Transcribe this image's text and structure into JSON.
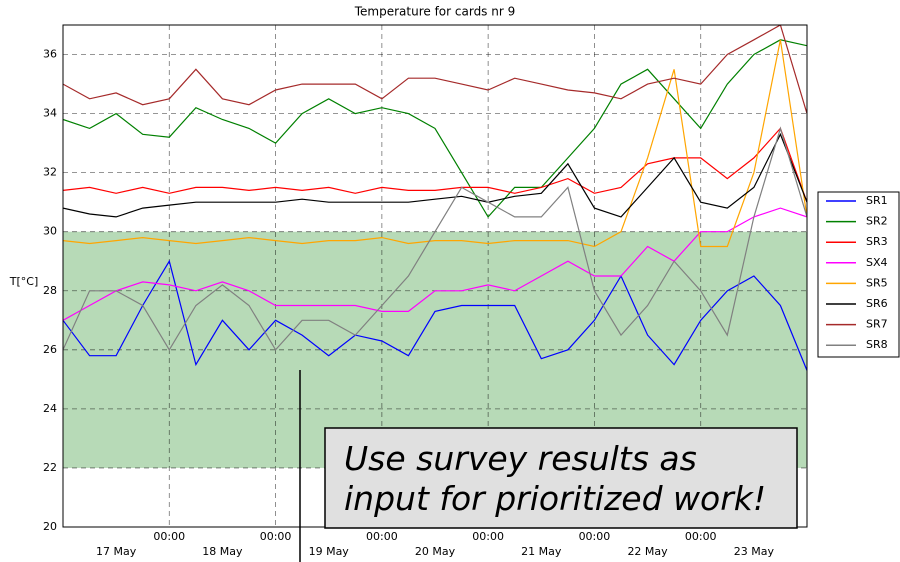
{
  "chart_data": {
    "type": "line",
    "title": "Temperature for cards nr 9",
    "y_label": "T[°C]",
    "x": [
      "17 May 00:00",
      "17 May 06:00",
      "17 May 12:00",
      "17 May 18:00",
      "18 May 00:00",
      "18 May 06:00",
      "18 May 12:00",
      "18 May 18:00",
      "19 May 00:00",
      "19 May 06:00",
      "19 May 12:00",
      "19 May 18:00",
      "20 May 00:00",
      "20 May 06:00",
      "20 May 12:00",
      "20 May 18:00",
      "21 May 00:00",
      "21 May 06:00",
      "21 May 12:00",
      "21 May 18:00",
      "22 May 00:00",
      "22 May 06:00",
      "22 May 12:00",
      "22 May 18:00",
      "23 May 00:00",
      "23 May 06:00",
      "23 May 12:00",
      "23 May 18:00",
      "24 May 00:00"
    ],
    "series": [
      {
        "name": "SR1",
        "color": "#0000ff",
        "values": [
          27,
          25.8,
          25.8,
          27.5,
          29,
          25.5,
          27,
          26,
          27,
          26.5,
          25.8,
          26.5,
          26.3,
          25.8,
          27.3,
          27.5,
          27.5,
          27.5,
          25.7,
          26,
          27,
          28.5,
          26.5,
          25.5,
          27,
          28,
          28.5,
          27.5,
          25.3
        ]
      },
      {
        "name": "SR2",
        "color": "#008000",
        "values": [
          33.8,
          33.5,
          34,
          33.3,
          33.2,
          34.2,
          33.8,
          33.5,
          33,
          34,
          34.5,
          34,
          34.2,
          34,
          33.5,
          32,
          30.5,
          31.5,
          31.5,
          32.5,
          33.5,
          35,
          35.5,
          34.5,
          33.5,
          35,
          36,
          36.5,
          36.3
        ]
      },
      {
        "name": "SR3",
        "color": "#ff0000",
        "values": [
          31.4,
          31.5,
          31.3,
          31.5,
          31.3,
          31.5,
          31.5,
          31.4,
          31.5,
          31.4,
          31.5,
          31.3,
          31.5,
          31.4,
          31.4,
          31.5,
          31.5,
          31.3,
          31.5,
          31.8,
          31.3,
          31.5,
          32.3,
          32.5,
          32.5,
          31.8,
          32.5,
          33.5,
          31
        ]
      },
      {
        "name": "SX4",
        "color": "#ff00ff",
        "values": [
          27,
          27.5,
          28,
          28.3,
          28.2,
          28,
          28.3,
          28,
          27.5,
          27.5,
          27.5,
          27.5,
          27.3,
          27.3,
          28,
          28,
          28.2,
          28,
          28.5,
          29,
          28.5,
          28.5,
          29.5,
          29,
          30,
          30,
          30.5,
          30.8,
          30.5
        ]
      },
      {
        "name": "SR5",
        "color": "#ffa500",
        "values": [
          29.7,
          29.6,
          29.7,
          29.8,
          29.7,
          29.6,
          29.7,
          29.8,
          29.7,
          29.6,
          29.7,
          29.7,
          29.8,
          29.6,
          29.7,
          29.7,
          29.6,
          29.7,
          29.7,
          29.7,
          29.5,
          30,
          32.5,
          35.5,
          29.5,
          29.5,
          32,
          36.5,
          30.5
        ]
      },
      {
        "name": "SR6",
        "color": "#000000",
        "values": [
          30.8,
          30.6,
          30.5,
          30.8,
          30.9,
          31,
          31,
          31,
          31,
          31.1,
          31,
          31,
          31,
          31,
          31.1,
          31.2,
          31,
          31.2,
          31.3,
          32.3,
          30.8,
          30.5,
          31.5,
          32.5,
          31,
          30.8,
          31.5,
          33.3,
          31
        ]
      },
      {
        "name": "SR7",
        "color": "#a52a2a",
        "values": [
          35,
          34.5,
          34.7,
          34.3,
          34.5,
          35.5,
          34.5,
          34.3,
          34.8,
          35,
          35,
          35,
          34.5,
          35.2,
          35.2,
          35,
          34.8,
          35.2,
          35,
          34.8,
          34.7,
          34.5,
          35,
          35.2,
          35,
          36,
          36.5,
          37,
          34
        ]
      },
      {
        "name": "SR8",
        "color": "#808080",
        "values": [
          26,
          28,
          28,
          27.5,
          26,
          27.5,
          28.2,
          27.5,
          26,
          27,
          27,
          26.5,
          27.5,
          28.5,
          30,
          31.5,
          31,
          30.5,
          30.5,
          31.5,
          28,
          26.5,
          27.5,
          29,
          28,
          26.5,
          30.5,
          33.5,
          30.5
        ]
      }
    ],
    "band": {
      "range": [
        22,
        30
      ],
      "color": "#b7dab7"
    },
    "xlim": [
      "17 May 00:00",
      "24 May 00:00"
    ],
    "xticks": [
      {
        "value": "18 May 00:00",
        "label": "00:00"
      },
      {
        "value": "19 May 00:00",
        "label": "00:00"
      },
      {
        "value": "20 May 00:00",
        "label": "00:00"
      },
      {
        "value": "21 May 00:00",
        "label": "00:00"
      },
      {
        "value": "22 May 00:00",
        "label": "00:00"
      },
      {
        "value": "23 May 00:00",
        "label": "00:00"
      }
    ],
    "day_ticks": [
      {
        "value": "17 May 12:00",
        "label": "17 May"
      },
      {
        "value": "18 May 12:00",
        "label": "18 May"
      },
      {
        "value": "19 May 12:00",
        "label": "19 May"
      },
      {
        "value": "20 May 12:00",
        "label": "20 May"
      },
      {
        "value": "21 May 12:00",
        "label": "21 May"
      },
      {
        "value": "22 May 12:00",
        "label": "22 May"
      },
      {
        "value": "23 May 12:00",
        "label": "23 May"
      }
    ],
    "ylim": [
      20,
      37
    ],
    "yticks": [
      20,
      22,
      24,
      26,
      28,
      30,
      32,
      34,
      36
    ],
    "grid": true,
    "legend": "outside right",
    "annotation": [
      "Use survey results as",
      "input for prioritized work!"
    ]
  }
}
